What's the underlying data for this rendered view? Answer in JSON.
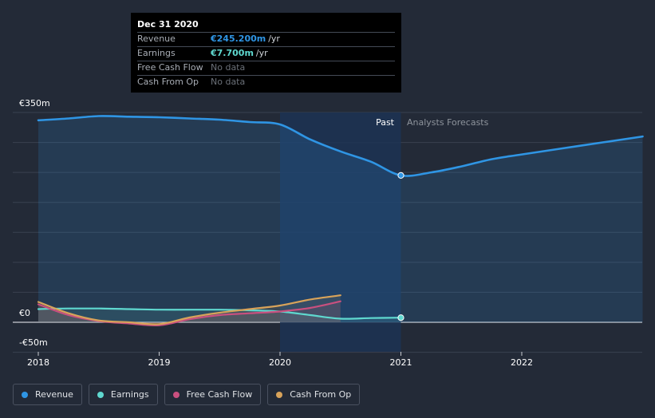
{
  "tooltip": {
    "date": "Dec 31 2020",
    "rows": [
      {
        "label": "Revenue",
        "value": "€245.200m",
        "unit": "/yr"
      },
      {
        "label": "Earnings",
        "value": "€7.700m",
        "unit": "/yr"
      },
      {
        "label": "Free Cash Flow",
        "value": "No data"
      },
      {
        "label": "Cash From Op",
        "value": "No data"
      }
    ]
  },
  "regions": {
    "past": "Past",
    "forecast": "Analysts Forecasts"
  },
  "legend": [
    {
      "label": "Revenue"
    },
    {
      "label": "Earnings"
    },
    {
      "label": "Free Cash Flow"
    },
    {
      "label": "Cash From Op"
    }
  ],
  "colors": {
    "revenue": "#2f95e4",
    "earnings": "#5fd8cf",
    "free_cash_flow": "#c9507f",
    "cash_from_op": "#d8a35a",
    "background": "#232a37",
    "past_shade": "#1c3354",
    "tooltip_revenue": "#2f95e4",
    "tooltip_earnings": "#5fd8cf"
  },
  "chart_data": {
    "type": "line",
    "title": "",
    "xlabel": "",
    "ylabel": "",
    "ylim": [
      -50,
      350
    ],
    "y_tick_labels": [
      "€350m",
      "€0",
      "-€50m"
    ],
    "x_tick_labels": [
      "2018",
      "2019",
      "2020",
      "2021",
      "2022"
    ],
    "past_until": 2021.0,
    "series": [
      {
        "name": "Revenue",
        "x": [
          2018.0,
          2018.25,
          2018.5,
          2018.75,
          2019.0,
          2019.25,
          2019.5,
          2019.75,
          2020.0,
          2020.25,
          2020.5,
          2020.75,
          2021.0,
          2021.25,
          2021.5,
          2021.75,
          2022.0,
          2022.5,
          2023.0
        ],
        "values": [
          337,
          340,
          344,
          343,
          342,
          340,
          338,
          334,
          330,
          305,
          285,
          268,
          245,
          250,
          260,
          272,
          280,
          295,
          310
        ]
      },
      {
        "name": "Earnings",
        "x": [
          2018.0,
          2018.25,
          2018.5,
          2018.75,
          2019.0,
          2019.25,
          2019.5,
          2019.75,
          2020.0,
          2020.25,
          2020.5,
          2020.75,
          2021.0
        ],
        "values": [
          22,
          23,
          23,
          22,
          21,
          21,
          21,
          20,
          18,
          12,
          6,
          7,
          7.7
        ]
      },
      {
        "name": "Free Cash Flow",
        "x": [
          2018.0,
          2018.25,
          2018.5,
          2018.75,
          2019.0,
          2019.25,
          2019.5,
          2019.75,
          2020.0,
          2020.25,
          2020.5
        ],
        "values": [
          30,
          12,
          2,
          -2,
          -5,
          5,
          12,
          15,
          18,
          24,
          35
        ]
      },
      {
        "name": "Cash From Op",
        "x": [
          2018.0,
          2018.25,
          2018.5,
          2018.75,
          2019.0,
          2019.25,
          2019.5,
          2019.75,
          2020.0,
          2020.25,
          2020.5
        ],
        "values": [
          34,
          15,
          3,
          0,
          -3,
          8,
          16,
          22,
          28,
          38,
          45
        ]
      }
    ]
  }
}
